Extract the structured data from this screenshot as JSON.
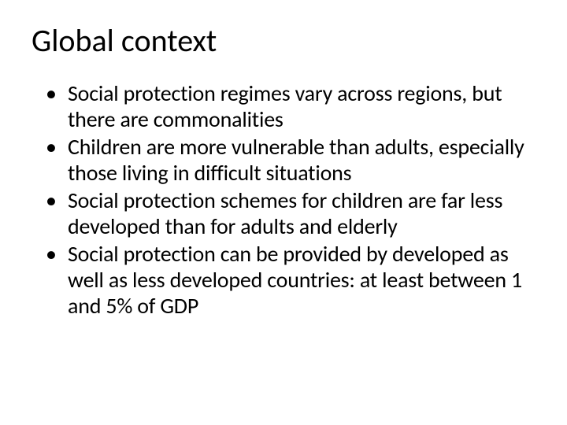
{
  "slide": {
    "title": "Global context",
    "title_fontsize": 40,
    "title_color": "#000000",
    "body_fontsize": 28,
    "body_color": "#000000",
    "background_color": "#ffffff",
    "bullets": [
      "Social protection regimes vary across regions, but there are commonalities",
      "Children are more vulnerable than adults, especially those living in difficult situations",
      "Social protection schemes for children are far less developed than for adults and elderly",
      "Social protection can be provided by developed  as well as less developed countries: at least between  1 and 5% of GDP"
    ]
  }
}
